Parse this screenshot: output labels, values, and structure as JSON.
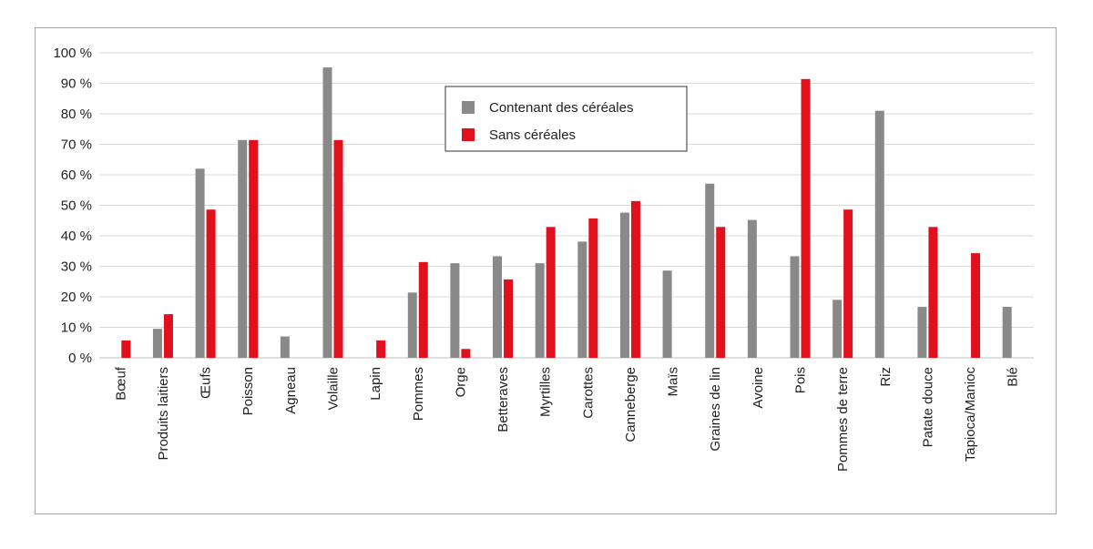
{
  "chart_data": {
    "type": "bar",
    "title": "",
    "xlabel": "",
    "ylabel": "",
    "ylim": [
      0,
      100
    ],
    "yticks": [
      "0 %",
      "10 %",
      "20 %",
      "30 %",
      "40 %",
      "50 %",
      "60 %",
      "70 %",
      "80 %",
      "90 %",
      "100 %"
    ],
    "grid": true,
    "legend_position": "top-center",
    "categories": [
      "Bœuf",
      "Produits laitiers",
      "Œufs",
      "Poisson",
      "Agneau",
      "Volaille",
      "Lapin",
      "Pommes",
      "Orge",
      "Betteraves",
      "Myrtilles",
      "Carottes",
      "Canneberge",
      "Maïs",
      "Graines de lin",
      "Avoine",
      "Pois",
      "Pommes de terre",
      "Riz",
      "Patate douce",
      "Tapioca/Manioc",
      "Blé"
    ],
    "series": [
      {
        "name": "Contenant des céréales",
        "color": "#898989",
        "values": [
          0,
          9.5,
          62,
          71.4,
          7,
          95.2,
          0,
          21.4,
          31,
          33.3,
          31,
          38.1,
          47.6,
          28.6,
          57.1,
          45.2,
          33.3,
          19,
          81,
          16.7,
          0,
          16.7
        ]
      },
      {
        "name": "Sans céréales",
        "color": "#e0101c",
        "values": [
          5.7,
          14.3,
          48.6,
          71.4,
          0,
          71.4,
          5.7,
          31.4,
          2.9,
          25.7,
          42.9,
          45.7,
          51.4,
          0,
          42.9,
          0,
          91.4,
          48.6,
          0,
          42.9,
          34.3,
          0
        ]
      }
    ]
  }
}
